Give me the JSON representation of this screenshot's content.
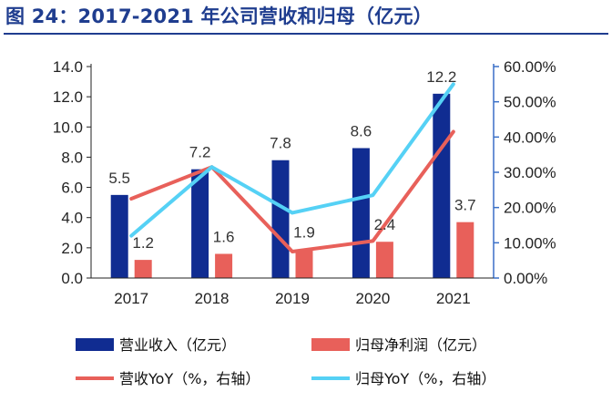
{
  "title": "图 24：2017-2021 年公司营收和归母（亿元）",
  "colors": {
    "title": "#1f3d8f",
    "revenue_bar": "#102c91",
    "profit_bar": "#e8605a",
    "revenue_yoy_line": "#e8605a",
    "profit_yoy_line": "#55d1f5",
    "right_axis": "#3a6fc7"
  },
  "chart_data": {
    "type": "bar",
    "categories": [
      "2017",
      "2018",
      "2019",
      "2020",
      "2021"
    ],
    "series": [
      {
        "name": "营业收入（亿元）",
        "type": "bar",
        "axis": "left",
        "values": [
          5.5,
          7.2,
          7.8,
          8.6,
          12.2
        ],
        "labels": [
          "5.5",
          "7.2",
          "7.8",
          "8.6",
          "12.2"
        ]
      },
      {
        "name": "归母净利润（亿元）",
        "type": "bar",
        "axis": "left",
        "values": [
          1.2,
          1.6,
          1.9,
          2.4,
          3.7
        ],
        "labels": [
          "1.2",
          "1.6",
          "1.9",
          "2.4",
          "3.7"
        ]
      },
      {
        "name": "营收YoY（%，右轴）",
        "type": "line",
        "axis": "right",
        "values": [
          22.5,
          31.5,
          7.5,
          10.5,
          41.5
        ]
      },
      {
        "name": "归母YoY（%，右轴）",
        "type": "line",
        "axis": "right",
        "values": [
          12.0,
          31.5,
          18.5,
          23.5,
          55.0
        ]
      }
    ],
    "left_axis": {
      "ylim": [
        0,
        14
      ],
      "ticks": [
        "0.0",
        "2.0",
        "4.0",
        "6.0",
        "8.0",
        "10.0",
        "12.0",
        "14.0"
      ]
    },
    "right_axis": {
      "ylim": [
        0,
        60
      ],
      "ticks": [
        "0.00%",
        "10.00%",
        "20.00%",
        "30.00%",
        "40.00%",
        "50.00%",
        "60.00%"
      ]
    },
    "grid": false,
    "legend_position": "bottom"
  }
}
